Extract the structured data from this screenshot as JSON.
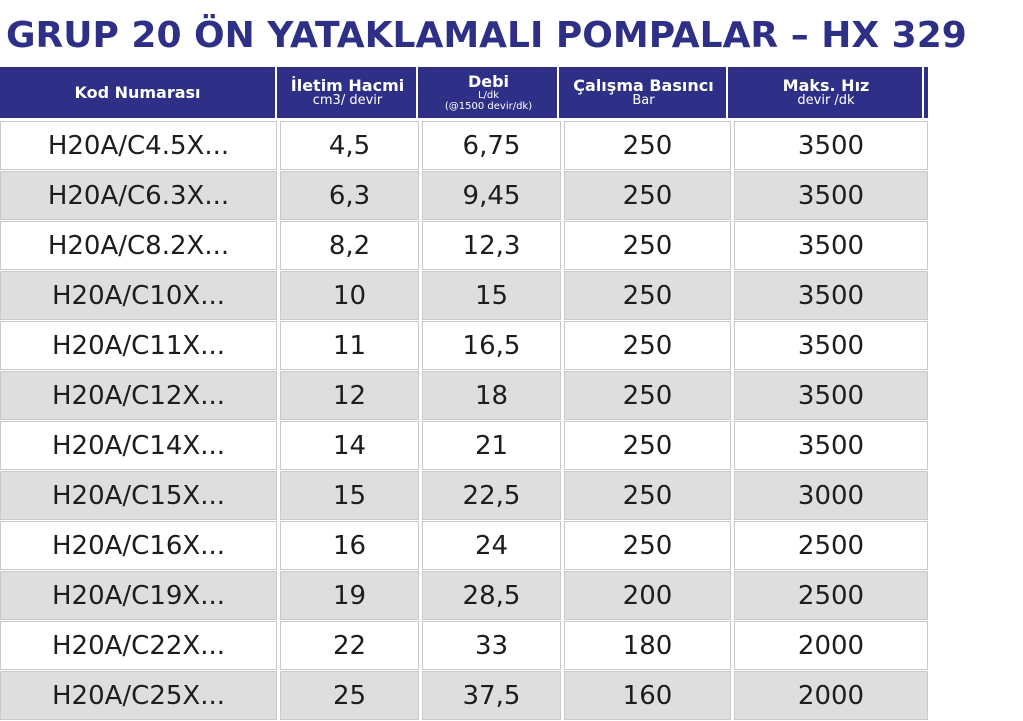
{
  "title": "GRUP 20 ÖN YATAKLAMALI POMPALAR – HX 329",
  "colors": {
    "header_bg": "#2e2f86",
    "title_text": "#2e2f86",
    "row_alt_bg": "#dedede"
  },
  "table": {
    "headers": [
      {
        "main": "Kod Numarası",
        "sub": ""
      },
      {
        "main": "İletim Hacmi",
        "sub": "cm3/ devir"
      },
      {
        "main": "Debi",
        "sub": "L/dk",
        "sub2": "(@1500 devir/dk)"
      },
      {
        "main": "Çalışma Basıncı",
        "sub": "Bar"
      },
      {
        "main": "Maks. Hız",
        "sub": "devir /dk"
      }
    ],
    "rows": [
      [
        "H20A/C4.5X...",
        "4,5",
        "6,75",
        "250",
        "3500"
      ],
      [
        "H20A/C6.3X...",
        "6,3",
        "9,45",
        "250",
        "3500"
      ],
      [
        "H20A/C8.2X...",
        "8,2",
        "12,3",
        "250",
        "3500"
      ],
      [
        "H20A/C10X...",
        "10",
        "15",
        "250",
        "3500"
      ],
      [
        "H20A/C11X...",
        "11",
        "16,5",
        "250",
        "3500"
      ],
      [
        "H20A/C12X...",
        "12",
        "18",
        "250",
        "3500"
      ],
      [
        "H20A/C14X...",
        "14",
        "21",
        "250",
        "3500"
      ],
      [
        "H20A/C15X...",
        "15",
        "22,5",
        "250",
        "3000"
      ],
      [
        "H20A/C16X...",
        "16",
        "24",
        "250",
        "2500"
      ],
      [
        "H20A/C19X...",
        "19",
        "28,5",
        "200",
        "2500"
      ],
      [
        "H20A/C22X...",
        "22",
        "33",
        "180",
        "2000"
      ],
      [
        "H20A/C25X...",
        "25",
        "37,5",
        "160",
        "2000"
      ]
    ]
  }
}
